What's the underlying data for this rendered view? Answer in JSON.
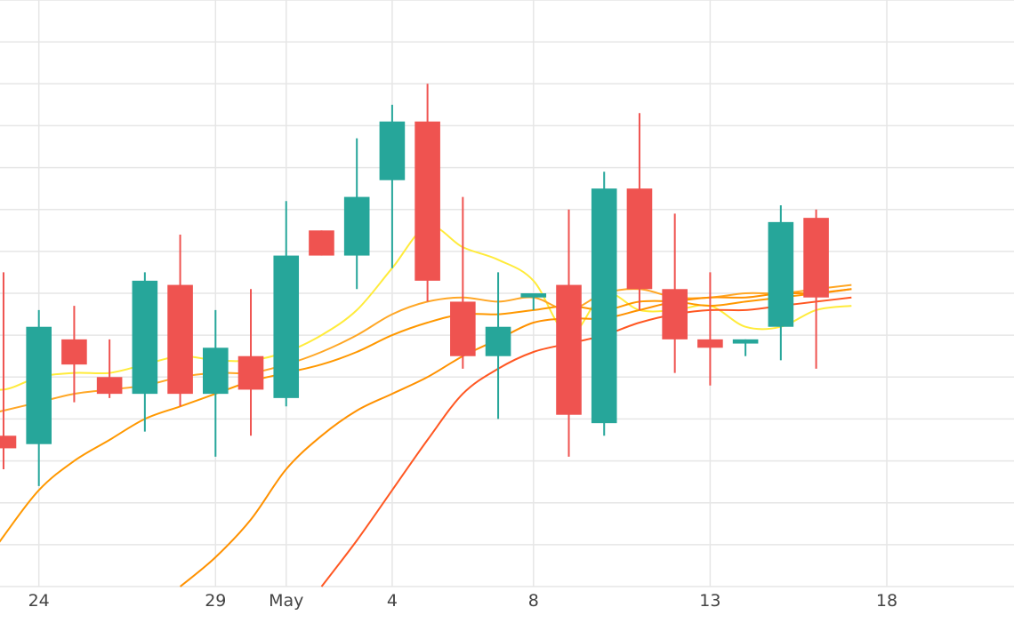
{
  "chart_data": {
    "type": "candlestick",
    "x_tick_labels": [
      "24",
      "29",
      "May",
      "4",
      "8",
      "13",
      "18"
    ],
    "x_ticks": [
      "2024-04-24",
      "2024-04-29",
      "2024-05-01",
      "2024-05-04",
      "2024-05-08",
      "2024-05-13",
      "2024-05-18"
    ],
    "xlim": [
      "2024-04-22.9",
      "2024-05-21.6"
    ],
    "ylim": [
      0,
      14
    ],
    "y_grid": [
      0,
      1,
      2,
      3,
      4,
      5,
      6,
      7,
      8,
      9,
      10,
      11,
      12,
      13,
      14
    ],
    "grid": true,
    "colors": {
      "up": "#26a69a",
      "down": "#ef5350"
    },
    "candles": [
      {
        "date": "2024-04-23",
        "open": 3.6,
        "high": 7.5,
        "low": 2.8,
        "close": 3.3
      },
      {
        "date": "2024-04-24",
        "open": 3.4,
        "high": 6.6,
        "low": 2.4,
        "close": 6.2
      },
      {
        "date": "2024-04-25",
        "open": 5.9,
        "high": 6.7,
        "low": 4.4,
        "close": 5.3
      },
      {
        "date": "2024-04-26",
        "open": 5.0,
        "high": 5.9,
        "low": 4.5,
        "close": 4.6
      },
      {
        "date": "2024-04-27",
        "open": 4.6,
        "high": 7.5,
        "low": 3.7,
        "close": 7.3
      },
      {
        "date": "2024-04-28",
        "open": 7.2,
        "high": 8.4,
        "low": 4.3,
        "close": 4.6
      },
      {
        "date": "2024-04-29",
        "open": 4.6,
        "high": 6.6,
        "low": 3.1,
        "close": 5.7
      },
      {
        "date": "2024-04-30",
        "open": 5.5,
        "high": 7.1,
        "low": 3.6,
        "close": 4.7
      },
      {
        "date": "2024-05-01",
        "open": 4.5,
        "high": 9.2,
        "low": 4.3,
        "close": 7.9
      },
      {
        "date": "2024-05-02",
        "open": 8.5,
        "high": 8.5,
        "low": 7.9,
        "close": 7.9
      },
      {
        "date": "2024-05-03",
        "open": 7.9,
        "high": 10.7,
        "low": 7.1,
        "close": 9.3
      },
      {
        "date": "2024-05-04",
        "open": 9.7,
        "high": 11.5,
        "low": 7.6,
        "close": 11.1
      },
      {
        "date": "2024-05-05",
        "open": 11.1,
        "high": 12.0,
        "low": 6.8,
        "close": 7.3
      },
      {
        "date": "2024-05-06",
        "open": 6.8,
        "high": 9.3,
        "low": 5.2,
        "close": 5.5
      },
      {
        "date": "2024-05-07",
        "open": 5.5,
        "high": 7.5,
        "low": 4.0,
        "close": 6.2
      },
      {
        "date": "2024-05-08",
        "open": 6.9,
        "high": 7.0,
        "low": 6.6,
        "close": 7.0
      },
      {
        "date": "2024-05-09",
        "open": 7.2,
        "high": 9.0,
        "low": 3.1,
        "close": 4.1
      },
      {
        "date": "2024-05-10",
        "open": 3.9,
        "high": 9.9,
        "low": 3.6,
        "close": 9.5
      },
      {
        "date": "2024-05-11",
        "open": 9.5,
        "high": 11.3,
        "low": 6.6,
        "close": 7.1
      },
      {
        "date": "2024-05-12",
        "open": 7.1,
        "high": 8.9,
        "low": 5.1,
        "close": 5.9
      },
      {
        "date": "2024-05-13",
        "open": 5.9,
        "high": 7.5,
        "low": 4.8,
        "close": 5.7
      },
      {
        "date": "2024-05-14",
        "open": 5.8,
        "high": 5.9,
        "low": 5.5,
        "close": 5.9
      },
      {
        "date": "2024-05-15",
        "open": 6.2,
        "high": 9.1,
        "low": 5.4,
        "close": 8.7
      },
      {
        "date": "2024-05-16",
        "open": 8.8,
        "high": 9.0,
        "low": 5.2,
        "close": 6.9
      }
    ],
    "moving_averages": [
      {
        "color": "#ffeb3b",
        "values": [
          {
            "date": "2024-04-22",
            "value": 4.8
          },
          {
            "date": "2024-04-23",
            "value": 4.7
          },
          {
            "date": "2024-04-24",
            "value": 5.0
          },
          {
            "date": "2024-04-25",
            "value": 5.1
          },
          {
            "date": "2024-04-26",
            "value": 5.1
          },
          {
            "date": "2024-04-27",
            "value": 5.3
          },
          {
            "date": "2024-04-28",
            "value": 5.5
          },
          {
            "date": "2024-04-29",
            "value": 5.4
          },
          {
            "date": "2024-04-30",
            "value": 5.4
          },
          {
            "date": "2024-05-01",
            "value": 5.6
          },
          {
            "date": "2024-05-02",
            "value": 6.0
          },
          {
            "date": "2024-05-03",
            "value": 6.6
          },
          {
            "date": "2024-05-04",
            "value": 7.6
          },
          {
            "date": "2024-05-05",
            "value": 8.6
          },
          {
            "date": "2024-05-06",
            "value": 8.1
          },
          {
            "date": "2024-05-07",
            "value": 7.8
          },
          {
            "date": "2024-05-08",
            "value": 7.3
          },
          {
            "date": "2024-05-09",
            "value": 6.0
          },
          {
            "date": "2024-05-10",
            "value": 7.0
          },
          {
            "date": "2024-05-11",
            "value": 6.6
          },
          {
            "date": "2024-05-12",
            "value": 6.6
          },
          {
            "date": "2024-05-13",
            "value": 6.7
          },
          {
            "date": "2024-05-14",
            "value": 6.2
          },
          {
            "date": "2024-05-15",
            "value": 6.2
          },
          {
            "date": "2024-05-16",
            "value": 6.6
          },
          {
            "date": "2024-05-17",
            "value": 6.7
          }
        ]
      },
      {
        "color": "#ffa726",
        "values": [
          {
            "date": "2024-04-22",
            "value": 4.0
          },
          {
            "date": "2024-04-23",
            "value": 4.2
          },
          {
            "date": "2024-04-24",
            "value": 4.4
          },
          {
            "date": "2024-04-25",
            "value": 4.6
          },
          {
            "date": "2024-04-26",
            "value": 4.7
          },
          {
            "date": "2024-04-27",
            "value": 4.8
          },
          {
            "date": "2024-04-28",
            "value": 5.0
          },
          {
            "date": "2024-04-29",
            "value": 5.1
          },
          {
            "date": "2024-04-30",
            "value": 5.1
          },
          {
            "date": "2024-05-01",
            "value": 5.3
          },
          {
            "date": "2024-05-02",
            "value": 5.6
          },
          {
            "date": "2024-05-03",
            "value": 6.0
          },
          {
            "date": "2024-05-04",
            "value": 6.5
          },
          {
            "date": "2024-05-05",
            "value": 6.8
          },
          {
            "date": "2024-05-06",
            "value": 6.9
          },
          {
            "date": "2024-05-07",
            "value": 6.8
          },
          {
            "date": "2024-05-08",
            "value": 6.9
          },
          {
            "date": "2024-05-09",
            "value": 6.6
          },
          {
            "date": "2024-05-10",
            "value": 7.0
          },
          {
            "date": "2024-05-11",
            "value": 7.1
          },
          {
            "date": "2024-05-12",
            "value": 6.9
          },
          {
            "date": "2024-05-13",
            "value": 6.9
          },
          {
            "date": "2024-05-14",
            "value": 7.0
          },
          {
            "date": "2024-05-15",
            "value": 7.0
          },
          {
            "date": "2024-05-16",
            "value": 7.1
          },
          {
            "date": "2024-05-17",
            "value": 7.2
          }
        ]
      },
      {
        "color": "#ff9800",
        "values": [
          {
            "date": "2024-04-22",
            "value": 0.0
          },
          {
            "date": "2024-04-23",
            "value": 1.2
          },
          {
            "date": "2024-04-24",
            "value": 2.3
          },
          {
            "date": "2024-04-25",
            "value": 3.0
          },
          {
            "date": "2024-04-26",
            "value": 3.5
          },
          {
            "date": "2024-04-27",
            "value": 4.0
          },
          {
            "date": "2024-04-28",
            "value": 4.3
          },
          {
            "date": "2024-04-29",
            "value": 4.6
          },
          {
            "date": "2024-04-30",
            "value": 4.9
          },
          {
            "date": "2024-05-01",
            "value": 5.1
          },
          {
            "date": "2024-05-02",
            "value": 5.3
          },
          {
            "date": "2024-05-03",
            "value": 5.6
          },
          {
            "date": "2024-05-04",
            "value": 6.0
          },
          {
            "date": "2024-05-05",
            "value": 6.3
          },
          {
            "date": "2024-05-06",
            "value": 6.5
          },
          {
            "date": "2024-05-07",
            "value": 6.5
          },
          {
            "date": "2024-05-08",
            "value": 6.6
          },
          {
            "date": "2024-05-09",
            "value": 6.7
          },
          {
            "date": "2024-05-10",
            "value": 6.6
          },
          {
            "date": "2024-05-11",
            "value": 6.8
          },
          {
            "date": "2024-05-12",
            "value": 6.8
          },
          {
            "date": "2024-05-13",
            "value": 6.7
          },
          {
            "date": "2024-05-14",
            "value": 6.8
          },
          {
            "date": "2024-05-15",
            "value": 6.9
          },
          {
            "date": "2024-05-16",
            "value": 7.0
          },
          {
            "date": "2024-05-17",
            "value": 7.1
          }
        ]
      },
      {
        "color": "#ff9100",
        "values": [
          {
            "date": "2024-04-28",
            "value": 0.0
          },
          {
            "date": "2024-04-29",
            "value": 0.7
          },
          {
            "date": "2024-04-30",
            "value": 1.6
          },
          {
            "date": "2024-05-01",
            "value": 2.8
          },
          {
            "date": "2024-05-02",
            "value": 3.6
          },
          {
            "date": "2024-05-03",
            "value": 4.2
          },
          {
            "date": "2024-05-04",
            "value": 4.6
          },
          {
            "date": "2024-05-05",
            "value": 5.0
          },
          {
            "date": "2024-05-06",
            "value": 5.5
          },
          {
            "date": "2024-05-07",
            "value": 5.9
          },
          {
            "date": "2024-05-08",
            "value": 6.3
          },
          {
            "date": "2024-05-09",
            "value": 6.4
          },
          {
            "date": "2024-05-10",
            "value": 6.4
          },
          {
            "date": "2024-05-11",
            "value": 6.6
          },
          {
            "date": "2024-05-12",
            "value": 6.8
          },
          {
            "date": "2024-05-13",
            "value": 6.9
          },
          {
            "date": "2024-05-14",
            "value": 6.9
          },
          {
            "date": "2024-05-15",
            "value": 7.0
          },
          {
            "date": "2024-05-16",
            "value": 7.0
          },
          {
            "date": "2024-05-17",
            "value": 7.1
          }
        ]
      },
      {
        "color": "#ff5722",
        "values": [
          {
            "date": "2024-05-02",
            "value": 0.0
          },
          {
            "date": "2024-05-03",
            "value": 1.1
          },
          {
            "date": "2024-05-04",
            "value": 2.3
          },
          {
            "date": "2024-05-05",
            "value": 3.5
          },
          {
            "date": "2024-05-06",
            "value": 4.6
          },
          {
            "date": "2024-05-07",
            "value": 5.2
          },
          {
            "date": "2024-05-08",
            "value": 5.6
          },
          {
            "date": "2024-05-09",
            "value": 5.8
          },
          {
            "date": "2024-05-10",
            "value": 6.0
          },
          {
            "date": "2024-05-11",
            "value": 6.3
          },
          {
            "date": "2024-05-12",
            "value": 6.5
          },
          {
            "date": "2024-05-13",
            "value": 6.6
          },
          {
            "date": "2024-05-14",
            "value": 6.6
          },
          {
            "date": "2024-05-15",
            "value": 6.7
          },
          {
            "date": "2024-05-16",
            "value": 6.8
          },
          {
            "date": "2024-05-17",
            "value": 6.9
          }
        ]
      }
    ]
  }
}
